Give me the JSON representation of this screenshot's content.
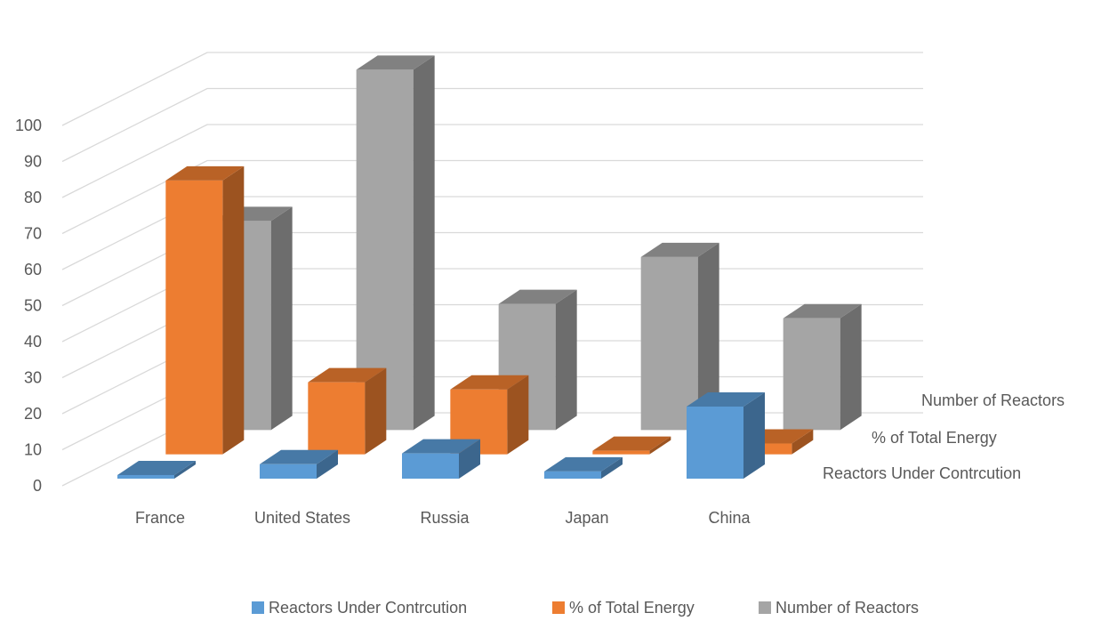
{
  "chart_data": {
    "type": "bar",
    "subtype": "3d-column",
    "categories": [
      "France",
      "United States",
      "Russia",
      "Japan",
      "China"
    ],
    "series": [
      {
        "name": "Reactors Under Contrcution",
        "values": [
          1,
          4,
          7,
          2,
          20
        ],
        "color": "#5b9bd5"
      },
      {
        "name": "% of Total Energy",
        "values": [
          76,
          20,
          18,
          1,
          3
        ],
        "color": "#ed7d31"
      },
      {
        "name": "Number of Reactors",
        "values": [
          58,
          100,
          35,
          48,
          31
        ],
        "color": "#a5a5a5"
      }
    ],
    "yticks": [
      "0",
      "10",
      "20",
      "30",
      "40",
      "50",
      "60",
      "70",
      "80",
      "90",
      "100"
    ],
    "ylim": [
      0,
      100
    ],
    "grid": true,
    "legend_position": "bottom"
  }
}
